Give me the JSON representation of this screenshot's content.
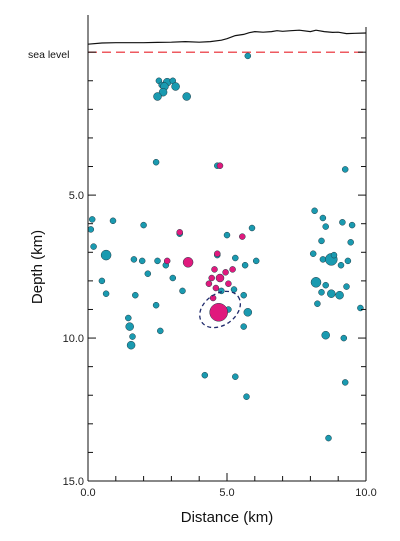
{
  "chart_data": {
    "type": "scatter",
    "xlabel": "Distance  (km)",
    "ylabel": "Depth  (km)",
    "xlim": [
      0,
      10
    ],
    "ylim": [
      -1.3,
      15
    ],
    "y_inverted": true,
    "x_ticks": [
      "0.0",
      "5.0",
      "10.0"
    ],
    "y_ticks": [
      "5.0",
      "10.0",
      "15.0"
    ],
    "sea_level_label": "sea level",
    "sea_level_depth": 0,
    "sea_level_color": "#e8242b",
    "topography": [
      [
        0.0,
        -0.28
      ],
      [
        0.5,
        -0.32
      ],
      [
        1.0,
        -0.33
      ],
      [
        1.5,
        -0.33
      ],
      [
        2.0,
        -0.33
      ],
      [
        2.5,
        -0.34
      ],
      [
        3.0,
        -0.35
      ],
      [
        3.5,
        -0.37
      ],
      [
        4.0,
        -0.35
      ],
      [
        4.4,
        -0.37
      ],
      [
        4.8,
        -0.42
      ],
      [
        5.0,
        -0.47
      ],
      [
        5.3,
        -0.58
      ],
      [
        5.6,
        -0.62
      ],
      [
        5.8,
        -0.68
      ],
      [
        6.0,
        -0.72
      ],
      [
        6.3,
        -0.7
      ],
      [
        6.6,
        -0.72
      ],
      [
        6.8,
        -0.75
      ],
      [
        7.0,
        -0.73
      ],
      [
        7.3,
        -0.75
      ],
      [
        7.6,
        -0.77
      ],
      [
        8.0,
        -0.72
      ],
      [
        8.2,
        -0.77
      ],
      [
        8.5,
        -0.72
      ],
      [
        8.8,
        -0.69
      ],
      [
        9.0,
        -0.7
      ],
      [
        9.3,
        -0.65
      ],
      [
        9.6,
        -0.66
      ],
      [
        10.0,
        -0.67
      ]
    ],
    "series": [
      {
        "color": "#1a9ab0",
        "points": [
          [
            5.75,
            0.13,
            3
          ],
          [
            2.55,
            1.0,
            3
          ],
          [
            2.85,
            1.05,
            4
          ],
          [
            2.65,
            1.15,
            3
          ],
          [
            3.05,
            1.0,
            3
          ],
          [
            2.75,
            1.2,
            4
          ],
          [
            3.15,
            1.2,
            4
          ],
          [
            2.7,
            1.4,
            4
          ],
          [
            2.5,
            1.55,
            4
          ],
          [
            3.55,
            1.55,
            4
          ],
          [
            2.45,
            3.85,
            3
          ],
          [
            4.65,
            3.97,
            3
          ],
          [
            9.25,
            4.1,
            3
          ],
          [
            0.15,
            5.85,
            3
          ],
          [
            0.9,
            5.9,
            3
          ],
          [
            8.15,
            5.55,
            3
          ],
          [
            8.45,
            5.8,
            3
          ],
          [
            9.15,
            5.95,
            3
          ],
          [
            0.1,
            6.2,
            3
          ],
          [
            0.2,
            6.8,
            3
          ],
          [
            2.0,
            6.05,
            3
          ],
          [
            3.3,
            6.35,
            3
          ],
          [
            5.0,
            6.4,
            3
          ],
          [
            5.9,
            6.15,
            3
          ],
          [
            8.55,
            6.1,
            3
          ],
          [
            9.5,
            6.05,
            3
          ],
          [
            9.45,
            6.65,
            3
          ],
          [
            8.4,
            6.6,
            3
          ],
          [
            0.65,
            7.1,
            5
          ],
          [
            1.65,
            7.25,
            3
          ],
          [
            2.5,
            7.3,
            3
          ],
          [
            1.95,
            7.3,
            3
          ],
          [
            4.65,
            7.1,
            3
          ],
          [
            5.3,
            7.2,
            3
          ],
          [
            5.65,
            7.45,
            3
          ],
          [
            6.05,
            7.3,
            3
          ],
          [
            8.1,
            7.05,
            3
          ],
          [
            8.45,
            7.25,
            3
          ],
          [
            8.75,
            7.25,
            6
          ],
          [
            8.85,
            7.1,
            3
          ],
          [
            9.35,
            7.3,
            3
          ],
          [
            9.1,
            7.45,
            3
          ],
          [
            0.5,
            8.0,
            3
          ],
          [
            2.15,
            7.75,
            3
          ],
          [
            3.05,
            7.9,
            3
          ],
          [
            2.8,
            7.45,
            3
          ],
          [
            8.2,
            8.05,
            5
          ],
          [
            8.55,
            8.15,
            3
          ],
          [
            9.3,
            8.2,
            3
          ],
          [
            0.65,
            8.45,
            3
          ],
          [
            3.4,
            8.35,
            3
          ],
          [
            5.25,
            8.3,
            3
          ],
          [
            5.6,
            8.5,
            3
          ],
          [
            1.7,
            8.5,
            3
          ],
          [
            8.75,
            8.45,
            4
          ],
          [
            8.4,
            8.4,
            3
          ],
          [
            9.05,
            8.5,
            4
          ],
          [
            8.25,
            8.8,
            3
          ],
          [
            2.45,
            8.85,
            3
          ],
          [
            4.8,
            8.35,
            3
          ],
          [
            5.05,
            9.0,
            3
          ],
          [
            5.75,
            9.1,
            4
          ],
          [
            9.8,
            8.95,
            3
          ],
          [
            1.45,
            9.3,
            3
          ],
          [
            1.5,
            9.6,
            4
          ],
          [
            1.6,
            9.95,
            3
          ],
          [
            1.55,
            10.25,
            4
          ],
          [
            2.6,
            9.75,
            3
          ],
          [
            5.6,
            9.6,
            3
          ],
          [
            8.55,
            9.9,
            4
          ],
          [
            9.2,
            10.0,
            3
          ],
          [
            4.2,
            11.3,
            3
          ],
          [
            5.3,
            11.35,
            3
          ],
          [
            9.25,
            11.55,
            3
          ],
          [
            5.7,
            12.05,
            3
          ],
          [
            8.65,
            13.5,
            3
          ]
        ]
      },
      {
        "color": "#e0197d",
        "points": [
          [
            4.75,
            3.97,
            3
          ],
          [
            3.3,
            6.3,
            3
          ],
          [
            5.55,
            6.45,
            3
          ],
          [
            2.85,
            7.3,
            3
          ],
          [
            3.6,
            7.35,
            5
          ],
          [
            4.65,
            7.05,
            3
          ],
          [
            4.55,
            7.6,
            3
          ],
          [
            4.95,
            7.7,
            3
          ],
          [
            5.2,
            7.6,
            3
          ],
          [
            4.45,
            7.9,
            3
          ],
          [
            4.75,
            7.9,
            4
          ],
          [
            4.35,
            8.1,
            3
          ],
          [
            5.05,
            8.1,
            3
          ],
          [
            4.6,
            8.25,
            3
          ],
          [
            4.5,
            8.6,
            3
          ],
          [
            4.7,
            9.1,
            9
          ]
        ]
      }
    ],
    "error_ellipse": {
      "center": [
        4.75,
        9.0
      ],
      "rx_km": 0.8,
      "ry_km": 0.55,
      "rotation_deg": -35,
      "color": "#1f2a6b"
    }
  }
}
